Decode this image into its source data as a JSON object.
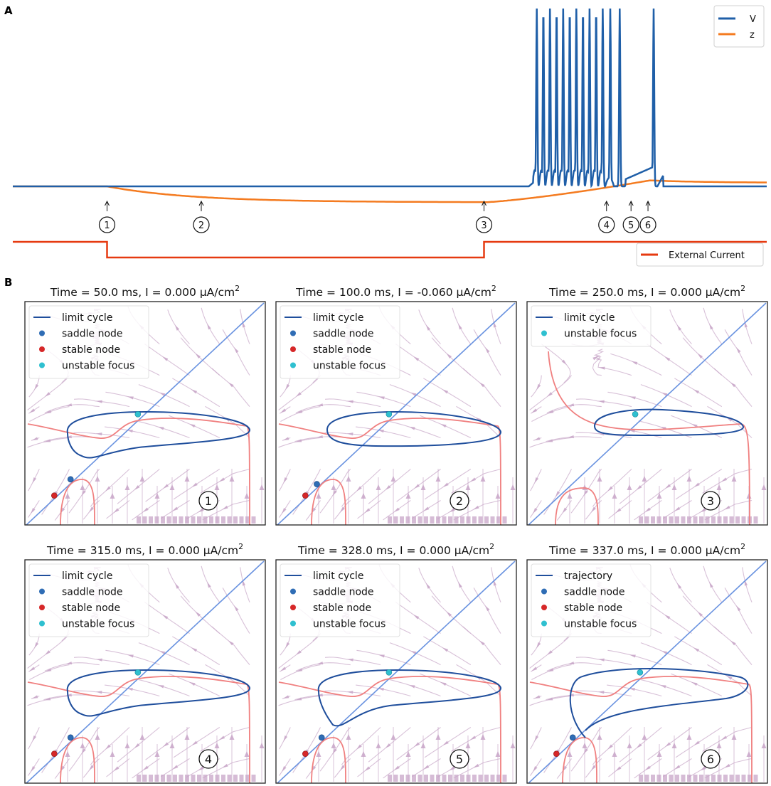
{
  "panel_labels": {
    "a": "A",
    "b": "B"
  },
  "colors": {
    "voltage": "#1f5fa8",
    "z": "#f47b20",
    "current": "#e63a10",
    "limit_cycle": "#1f4e9c",
    "nullcline_red": "#f08080",
    "diag": "#6a93e0",
    "stream": "#c8a6c8",
    "saddle": "#2f6db5",
    "stable": "#d62728",
    "unstable": "#2fc0d0"
  },
  "chart_data": [
    {
      "type": "line",
      "panel": "A",
      "title": "",
      "xlabel": "",
      "ylabel": "",
      "legend": {
        "position": "top-right",
        "entries": [
          "V",
          "z"
        ]
      },
      "legend_current": {
        "position": "bottom-right",
        "entries": [
          "External Current"
        ]
      },
      "x_range": [
        0,
        400
      ],
      "series": [
        {
          "name": "V",
          "baseline": 0.0,
          "hyperpol_min": -0.09,
          "spike_times_ms": [
            278,
            281.5,
            285,
            288.5,
            292,
            295.5,
            299,
            302.5,
            306,
            309.5,
            313,
            317,
            322,
            340
          ],
          "spike_peak": 1.0,
          "after_trough": -0.04
        },
        {
          "name": "z",
          "baseline": 0.0,
          "min": -0.08,
          "max": 0.03
        },
        {
          "name": "External Current",
          "values_I": [
            0.0,
            -0.06,
            0.0
          ],
          "step_times_ms": [
            50,
            250
          ]
        }
      ],
      "markers": [
        {
          "label": "1",
          "time_ms": 50
        },
        {
          "label": "2",
          "time_ms": 100
        },
        {
          "label": "3",
          "time_ms": 250
        },
        {
          "label": "4",
          "time_ms": 315
        },
        {
          "label": "5",
          "time_ms": 328
        },
        {
          "label": "6",
          "time_ms": 337
        }
      ]
    },
    {
      "type": "scatter",
      "panel": "B",
      "subplots": [
        {
          "title_prefix": "Time = 50.0 ms, I = 0.000 μA/cm",
          "sup": "2",
          "number": "1",
          "legend": [
            "limit cycle",
            "saddle node",
            "stable node",
            "unstable focus"
          ],
          "has_saddle": true,
          "has_stable": true,
          "trajectory": false
        },
        {
          "title_prefix": "Time = 100.0 ms, I = -0.060 μA/cm",
          "sup": "2",
          "number": "2",
          "legend": [
            "limit cycle",
            "saddle node",
            "stable node",
            "unstable focus"
          ],
          "has_saddle": true,
          "has_stable": true,
          "trajectory": false
        },
        {
          "title_prefix": "Time = 250.0 ms, I = 0.000 μA/cm",
          "sup": "2",
          "number": "3",
          "legend": [
            "limit cycle",
            "unstable focus"
          ],
          "has_saddle": false,
          "has_stable": false,
          "trajectory": false
        },
        {
          "title_prefix": "Time = 315.0 ms, I = 0.000 μA/cm",
          "sup": "2",
          "number": "4",
          "legend": [
            "limit cycle",
            "saddle node",
            "stable node",
            "unstable focus"
          ],
          "has_saddle": true,
          "has_stable": true,
          "trajectory": false
        },
        {
          "title_prefix": "Time = 328.0 ms, I = 0.000 μA/cm",
          "sup": "2",
          "number": "5",
          "legend": [
            "limit cycle",
            "saddle node",
            "stable node",
            "unstable focus"
          ],
          "has_saddle": true,
          "has_stable": true,
          "trajectory": false
        },
        {
          "title_prefix": "Time = 337.0 ms, I = 0.000 μA/cm",
          "sup": "2",
          "number": "6",
          "legend": [
            "trajectory",
            "saddle node",
            "stable node",
            "unstable focus"
          ],
          "has_saddle": true,
          "has_stable": true,
          "trajectory": true
        }
      ]
    }
  ]
}
